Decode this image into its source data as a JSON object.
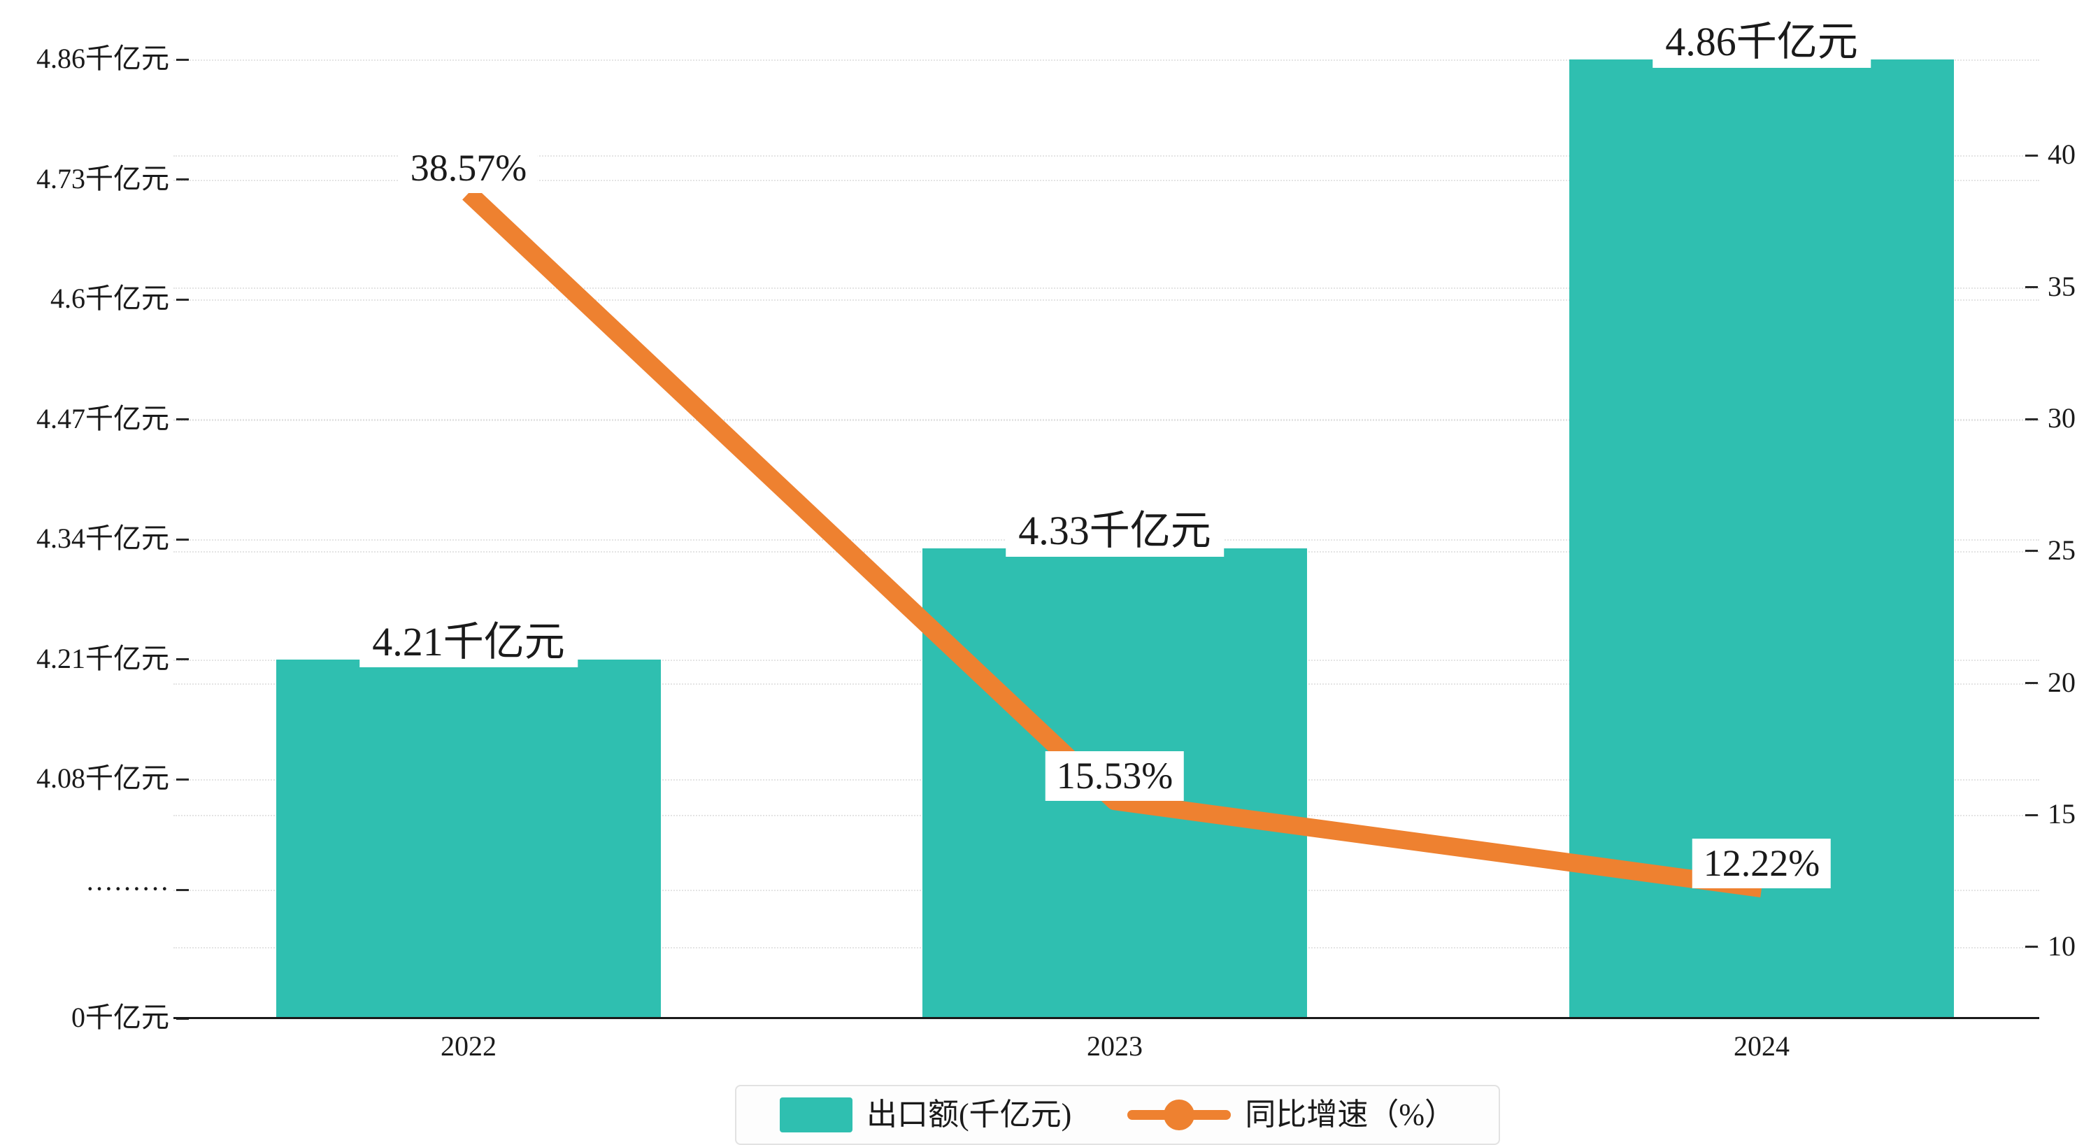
{
  "chart_data": {
    "type": "bar",
    "subtype": "bar-line-dual-axis",
    "categories": [
      "2022",
      "2023",
      "2024"
    ],
    "series": [
      {
        "name": "出口额(千亿元)",
        "type": "bar",
        "axis": "left",
        "values": [
          4.21,
          4.33,
          4.86
        ],
        "data_labels": [
          "4.21千亿元",
          "4.33千亿元",
          "4.86千亿元"
        ],
        "color": "#2fbfb0"
      },
      {
        "name": "同比增速（%）",
        "type": "line",
        "axis": "right",
        "values": [
          38.57,
          15.53,
          12.22
        ],
        "data_labels": [
          "38.57%",
          "15.53%",
          "12.22%"
        ],
        "color": "#ee8130"
      }
    ],
    "left_axis": {
      "tick_labels": [
        "4.86千亿元",
        "4.73千亿元",
        "4.6千亿元",
        "4.47千亿元",
        "4.34千亿元",
        "4.21千亿元",
        "4.08千亿元",
        "·········",
        "0千亿元"
      ],
      "tick_values_top": [
        4.86,
        4.73,
        4.6,
        4.47,
        4.34,
        4.21,
        4.08
      ],
      "baseline_value": 0,
      "has_break": true
    },
    "right_axis": {
      "tick_labels": [
        "40",
        "35",
        "30",
        "25",
        "20",
        "15",
        "10"
      ],
      "tick_values": [
        40,
        35,
        30,
        25,
        20,
        15,
        10
      ]
    },
    "legend": {
      "position": "bottom",
      "items": [
        {
          "label": "出口额(千亿元)",
          "marker": "square",
          "color": "#2fbfb0"
        },
        {
          "label": "同比增速（%）",
          "marker": "line-dot",
          "color": "#ee8130"
        }
      ]
    },
    "grid": true,
    "colors": {
      "bar": "#2fbfb0",
      "line": "#ee8130",
      "axis_text": "#1a1a1a",
      "gridline": "#e4e4e4",
      "label_bg": "#ffffff"
    }
  }
}
